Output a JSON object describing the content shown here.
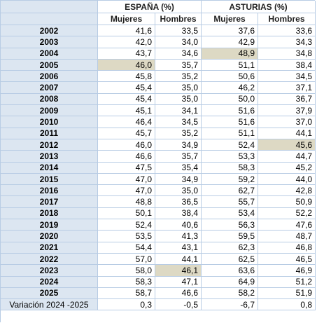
{
  "table": {
    "groups": [
      "ESPAÑA (%)",
      "ASTURIAS (%)"
    ],
    "columns": [
      "Mujeres",
      "Hombres",
      "Mujeres",
      "Hombres"
    ],
    "rows": [
      [
        "2002",
        "41,6",
        "33,5",
        "37,6",
        "33,6"
      ],
      [
        "2003",
        "42,0",
        "34,0",
        "42,9",
        "34,3"
      ],
      [
        "2004",
        "43,7",
        "34,6",
        "48,9",
        "34,8"
      ],
      [
        "2005",
        "46,0",
        "35,7",
        "51,1",
        "38,4"
      ],
      [
        "2006",
        "45,8",
        "35,2",
        "50,6",
        "34,5"
      ],
      [
        "2007",
        "45,4",
        "35,0",
        "46,2",
        "37,1"
      ],
      [
        "2008",
        "45,4",
        "35,0",
        "50,0",
        "36,7"
      ],
      [
        "2009",
        "45,1",
        "34,1",
        "51,6",
        "37,9"
      ],
      [
        "2010",
        "46,4",
        "34,5",
        "51,6",
        "37,0"
      ],
      [
        "2011",
        "45,7",
        "35,2",
        "51,1",
        "44,1"
      ],
      [
        "2012",
        "46,0",
        "34,9",
        "52,4",
        "45,6"
      ],
      [
        "2013",
        "46,6",
        "35,7",
        "53,3",
        "44,7"
      ],
      [
        "2014",
        "47,5",
        "35,4",
        "58,3",
        "45,2"
      ],
      [
        "2015",
        "47,0",
        "34,9",
        "59,2",
        "44,0"
      ],
      [
        "2016",
        "47,0",
        "35,0",
        "62,7",
        "42,8"
      ],
      [
        "2017",
        "48,8",
        "36,5",
        "55,7",
        "50,9"
      ],
      [
        "2018",
        "50,1",
        "38,4",
        "53,4",
        "52,2"
      ],
      [
        "2019",
        "52,4",
        "40,6",
        "56,3",
        "47,6"
      ],
      [
        "2020",
        "53,5",
        "41,3",
        "59,5",
        "48,7"
      ],
      [
        "2021",
        "54,4",
        "43,1",
        "62,3",
        "46,8"
      ],
      [
        "2022",
        "57,0",
        "44,1",
        "62,5",
        "46,5"
      ],
      [
        "2023",
        "58,0",
        "46,1",
        "63,6",
        "46,9"
      ],
      [
        "2024",
        "58,3",
        "47,1",
        "64,9",
        "51,2"
      ],
      [
        "2025",
        "58,7",
        "46,6",
        "58,2",
        "51,9"
      ],
      [
        "Variación 2024 -2025",
        "0,3",
        "-0,5",
        "-6,7",
        "0,8"
      ]
    ]
  }
}
